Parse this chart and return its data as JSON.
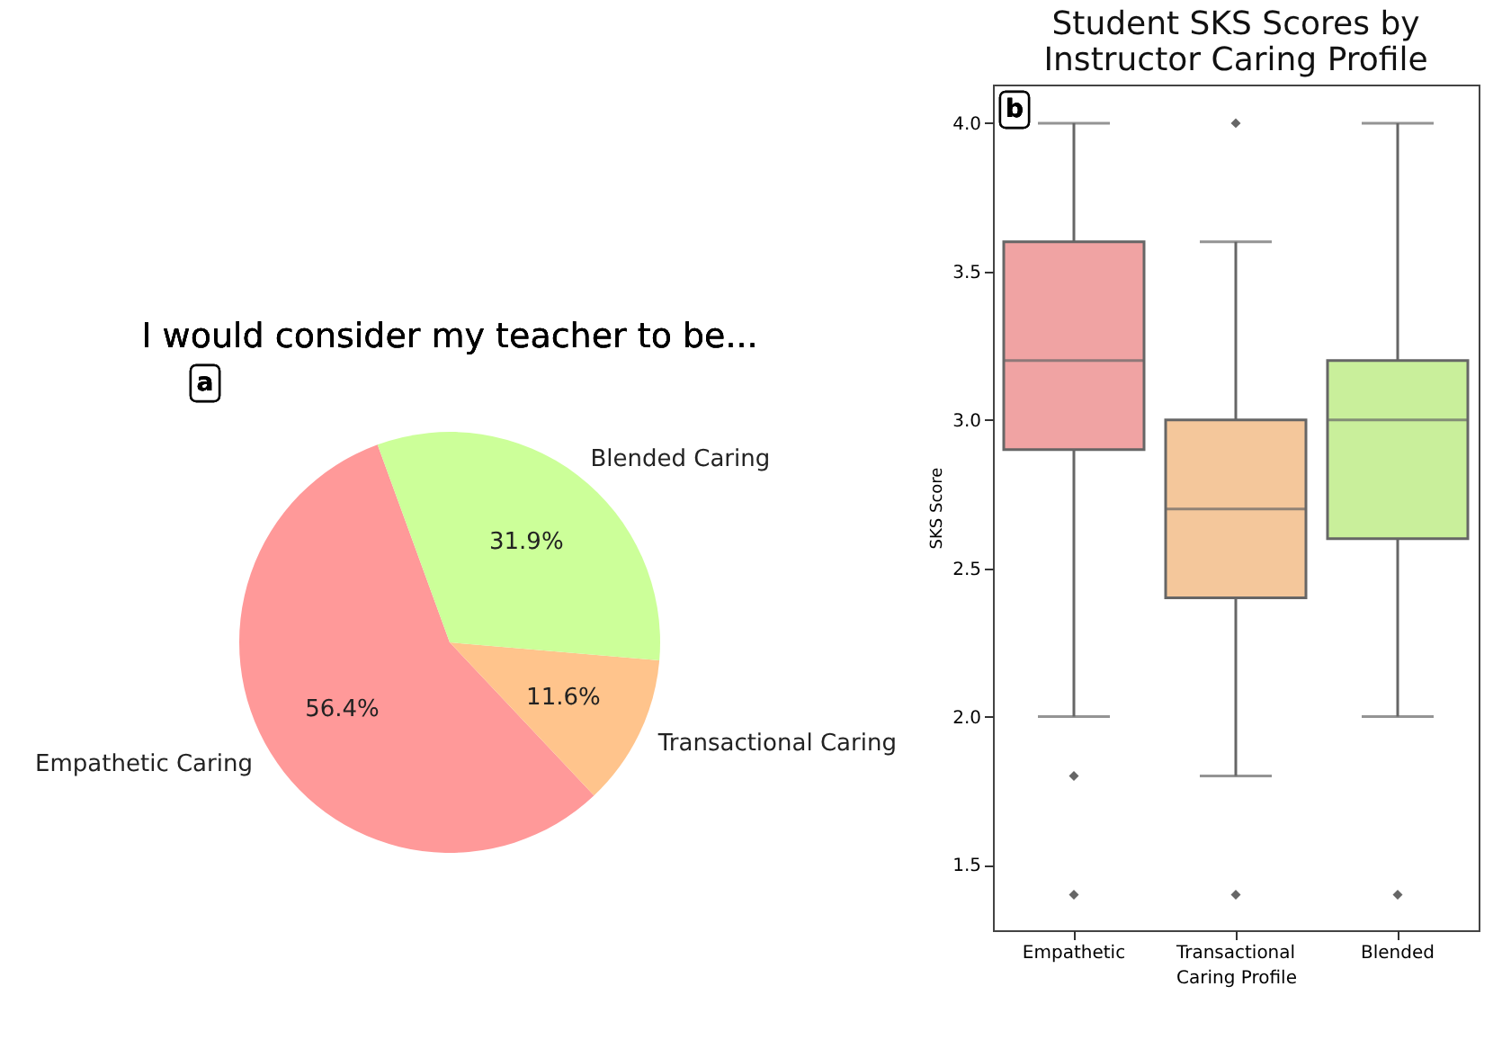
{
  "chart_data": [
    {
      "type": "pie",
      "title": "I would consider my teacher to be...",
      "categories": [
        "Empathetic Caring",
        "Transactional Caring",
        "Blended Caring"
      ],
      "values": [
        56.4,
        11.6,
        31.9
      ],
      "colors": [
        "#ff9999",
        "#ffc48c",
        "#ccff99"
      ],
      "value_labels": [
        "56.4%",
        "11.6%",
        "31.9%"
      ],
      "annotations": [
        "a"
      ]
    },
    {
      "type": "box",
      "title": "Student SKS Scores by\nInstructor Caring Profile",
      "xlabel": "Caring Profile",
      "ylabel": "SKS Score",
      "categories": [
        "Empathetic",
        "Transactional",
        "Blended"
      ],
      "colors": [
        "#f0a3a3",
        "#f4c79b",
        "#c9ef9b"
      ],
      "boxes": [
        {
          "low": 2.0,
          "q1": 2.9,
          "median": 3.2,
          "q3": 3.6,
          "high": 4.0,
          "outliers": [
            1.8,
            1.4
          ]
        },
        {
          "low": 1.8,
          "q1": 2.4,
          "median": 2.7,
          "q3": 3.0,
          "high": 3.6,
          "outliers": [
            4.0,
            1.4
          ]
        },
        {
          "low": 2.0,
          "q1": 2.6,
          "median": 3.0,
          "q3": 3.2,
          "high": 4.0,
          "outliers": [
            1.4
          ]
        }
      ],
      "ylim": [
        1.28,
        4.13
      ],
      "yticks": [
        {
          "value": 1.5,
          "label": "1.5"
        },
        {
          "value": 2,
          "label": "2.0"
        },
        {
          "value": 2.5,
          "label": "2.5"
        },
        {
          "value": 3,
          "label": "3.0"
        },
        {
          "value": 3.5,
          "label": "3.5"
        },
        {
          "value": 4,
          "label": "4.0"
        }
      ],
      "annotations": [
        "b"
      ]
    }
  ]
}
